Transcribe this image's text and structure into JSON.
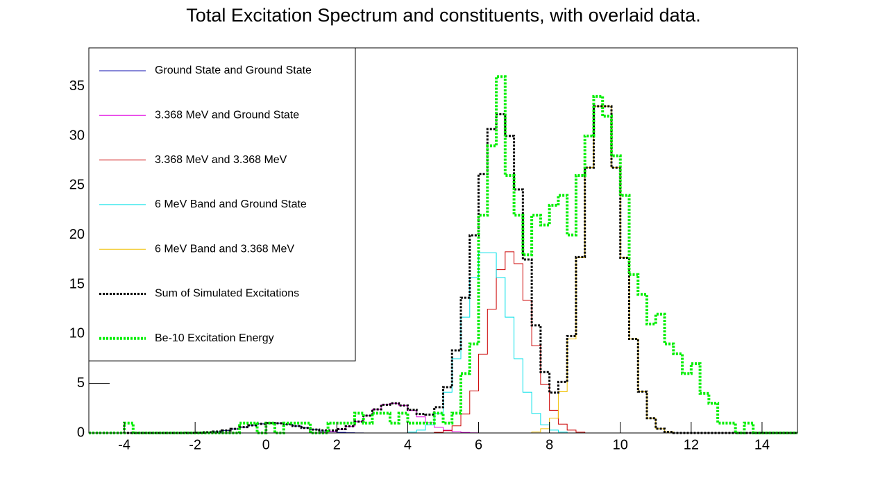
{
  "chart_data": {
    "type": "histogram",
    "title": "Total Excitation Spectrum and constituents, with overlaid data.",
    "bins": [
      -5,
      -4.75,
      -4.5,
      -4.25,
      -4,
      -3.75,
      -3.5,
      -3.25,
      -3,
      -2.75,
      -2.5,
      -2.25,
      -2,
      -1.75,
      -1.5,
      -1.25,
      -1,
      -0.75,
      -0.5,
      -0.25,
      0,
      0.25,
      0.5,
      0.75,
      1,
      1.25,
      1.5,
      1.75,
      2,
      2.25,
      2.5,
      2.75,
      3,
      3.25,
      3.5,
      3.75,
      4,
      4.25,
      4.5,
      4.75,
      5,
      5.25,
      5.5,
      5.75,
      6,
      6.25,
      6.5,
      6.75,
      7,
      7.25,
      7.5,
      7.75,
      8,
      8.25,
      8.5,
      8.75,
      9,
      9.25,
      9.5,
      9.75,
      10,
      10.25,
      10.5,
      10.75,
      11,
      11.25,
      11.5,
      11.75,
      12,
      12.25,
      12.5,
      12.75,
      13,
      13.25,
      13.5,
      13.75,
      14,
      14.25,
      14.5,
      14.75,
      15
    ],
    "series": [
      {
        "name": "Ground State and Ground State",
        "color": "#1010b0",
        "style": "solid",
        "values": [
          0,
          0,
          0,
          0,
          0,
          0,
          0,
          0,
          0,
          0,
          0,
          0.01,
          0.03,
          0.07,
          0.14,
          0.25,
          0.41,
          0.59,
          0.77,
          0.92,
          1,
          0.98,
          0.87,
          0.7,
          0.51,
          0.34,
          0.2,
          0.11,
          0.06,
          0.03,
          0.01,
          0,
          0,
          0,
          0,
          0,
          0,
          0,
          0,
          0,
          0,
          0,
          0,
          0,
          0,
          0,
          0,
          0,
          0,
          0,
          0,
          0,
          0,
          0,
          0,
          0,
          0,
          0,
          0,
          0,
          0,
          0,
          0,
          0,
          0,
          0,
          0,
          0,
          0,
          0,
          0,
          0,
          0,
          0,
          0,
          0,
          0,
          0,
          0,
          0
        ]
      },
      {
        "name": "3.368 MeV and Ground State",
        "color": "#e000e0",
        "style": "solid",
        "values": [
          0,
          0,
          0,
          0,
          0,
          0,
          0,
          0,
          0,
          0,
          0,
          0,
          0,
          0,
          0,
          0,
          0,
          0,
          0,
          0,
          0,
          0,
          0,
          0,
          0,
          0,
          0.06,
          0.14,
          0.33,
          0.65,
          1.14,
          1.75,
          2.38,
          2.85,
          3,
          2.78,
          2.26,
          1.63,
          1.03,
          0.57,
          0.28,
          0.12,
          0.05,
          0.02,
          0,
          0,
          0,
          0,
          0,
          0,
          0,
          0,
          0,
          0,
          0,
          0,
          0,
          0,
          0,
          0,
          0,
          0,
          0,
          0,
          0,
          0,
          0,
          0,
          0,
          0,
          0,
          0,
          0,
          0,
          0,
          0,
          0,
          0,
          0,
          0
        ]
      },
      {
        "name": "3.368 MeV and 3.368 MeV",
        "color": "#cc0000",
        "style": "solid",
        "values": [
          0,
          0,
          0,
          0,
          0,
          0,
          0,
          0,
          0,
          0,
          0,
          0,
          0,
          0,
          0,
          0,
          0,
          0,
          0,
          0,
          0,
          0,
          0,
          0,
          0,
          0,
          0,
          0,
          0,
          0,
          0,
          0,
          0,
          0,
          0,
          0,
          0,
          0,
          0,
          0.06,
          0.23,
          0.72,
          1.91,
          4.25,
          7.96,
          12.5,
          16.5,
          18.3,
          17.1,
          13.4,
          8.8,
          4.9,
          2.29,
          0.89,
          0.29,
          0.08,
          0,
          0,
          0,
          0,
          0,
          0,
          0,
          0,
          0,
          0,
          0,
          0,
          0,
          0,
          0,
          0,
          0,
          0,
          0,
          0,
          0,
          0,
          0,
          0
        ]
      },
      {
        "name": "6 MeV Band and Ground State",
        "color": "#00e0e8",
        "style": "solid",
        "values": [
          0,
          0,
          0,
          0,
          0,
          0,
          0,
          0,
          0,
          0,
          0,
          0,
          0,
          0,
          0,
          0,
          0,
          0,
          0,
          0,
          0,
          0,
          0,
          0,
          0,
          0,
          0,
          0,
          0,
          0,
          0,
          0,
          0,
          0,
          0,
          0,
          0.09,
          0.29,
          0.82,
          1.97,
          4.12,
          7.5,
          11.7,
          15.7,
          18.2,
          18.2,
          15.7,
          11.7,
          7.5,
          4.12,
          1.97,
          0.82,
          0.29,
          0.09,
          0,
          0,
          0,
          0,
          0,
          0,
          0,
          0,
          0,
          0,
          0,
          0,
          0,
          0,
          0,
          0,
          0,
          0,
          0,
          0,
          0,
          0,
          0,
          0,
          0,
          0
        ]
      },
      {
        "name": "6 MeV Band and 3.368 MeV",
        "color": "#f0c000",
        "style": "solid",
        "values": [
          0,
          0,
          0,
          0,
          0,
          0,
          0,
          0,
          0,
          0,
          0,
          0,
          0,
          0,
          0,
          0,
          0,
          0,
          0,
          0,
          0,
          0,
          0,
          0,
          0,
          0,
          0,
          0,
          0,
          0,
          0,
          0,
          0,
          0,
          0,
          0,
          0,
          0,
          0,
          0,
          0,
          0,
          0,
          0,
          0,
          0,
          0,
          0,
          0,
          0,
          0.1,
          0.43,
          1.49,
          4.18,
          9.5,
          17.7,
          26.8,
          33,
          33,
          26.8,
          17.7,
          9.5,
          4.18,
          1.49,
          0.43,
          0.1,
          0,
          0,
          0,
          0,
          0,
          0,
          0,
          0,
          0,
          0,
          0,
          0,
          0,
          0
        ]
      },
      {
        "name": "Sum of Simulated Excitations",
        "color": "#000000",
        "style": "dotted",
        "values": [
          0,
          0,
          0,
          0,
          0,
          0,
          0,
          0,
          0,
          0,
          0,
          0.01,
          0.03,
          0.07,
          0.14,
          0.25,
          0.41,
          0.59,
          0.77,
          0.92,
          1,
          0.98,
          0.87,
          0.7,
          0.51,
          0.34,
          0.26,
          0.25,
          0.39,
          0.68,
          1.15,
          1.75,
          2.38,
          2.85,
          3,
          2.78,
          2.35,
          1.92,
          1.85,
          2.6,
          4.63,
          8.34,
          13.66,
          19.97,
          26.16,
          30.7,
          32.2,
          30,
          24.6,
          17.52,
          10.87,
          6.15,
          4.07,
          5.16,
          9.79,
          17.78,
          26.8,
          33,
          33,
          26.8,
          17.7,
          9.5,
          4.18,
          1.49,
          0.43,
          0.1,
          0,
          0,
          0,
          0,
          0,
          0,
          0,
          0,
          0,
          0,
          0,
          0,
          0,
          0
        ]
      },
      {
        "name": "Be-10 Excitation Energy",
        "color": "#00ee00",
        "style": "dotted-thick",
        "values": [
          0,
          0,
          0,
          0,
          1,
          0,
          0,
          0,
          0,
          0,
          0,
          0,
          0,
          0,
          0,
          0,
          0,
          1,
          1,
          0,
          1,
          0,
          1,
          1,
          1,
          0,
          0,
          1,
          1,
          1,
          2,
          1,
          2,
          2,
          1,
          2,
          1,
          1,
          1,
          2,
          1,
          2,
          6,
          9,
          22,
          29,
          36,
          26,
          22,
          18,
          22,
          21,
          23,
          24,
          20,
          26,
          30,
          34,
          32,
          28,
          24,
          16,
          14,
          11,
          12,
          9,
          8,
          6,
          7,
          4,
          3,
          1,
          1,
          0,
          1,
          0,
          0,
          0,
          0,
          0
        ]
      }
    ],
    "xlim": [
      -5,
      15
    ],
    "xticks": [
      -4,
      -2,
      0,
      2,
      4,
      6,
      8,
      10,
      12,
      14
    ],
    "ylim": [
      0,
      38.9
    ],
    "yticks": [
      0,
      5,
      10,
      15,
      20,
      25,
      30,
      35
    ],
    "legend": "top-left"
  }
}
